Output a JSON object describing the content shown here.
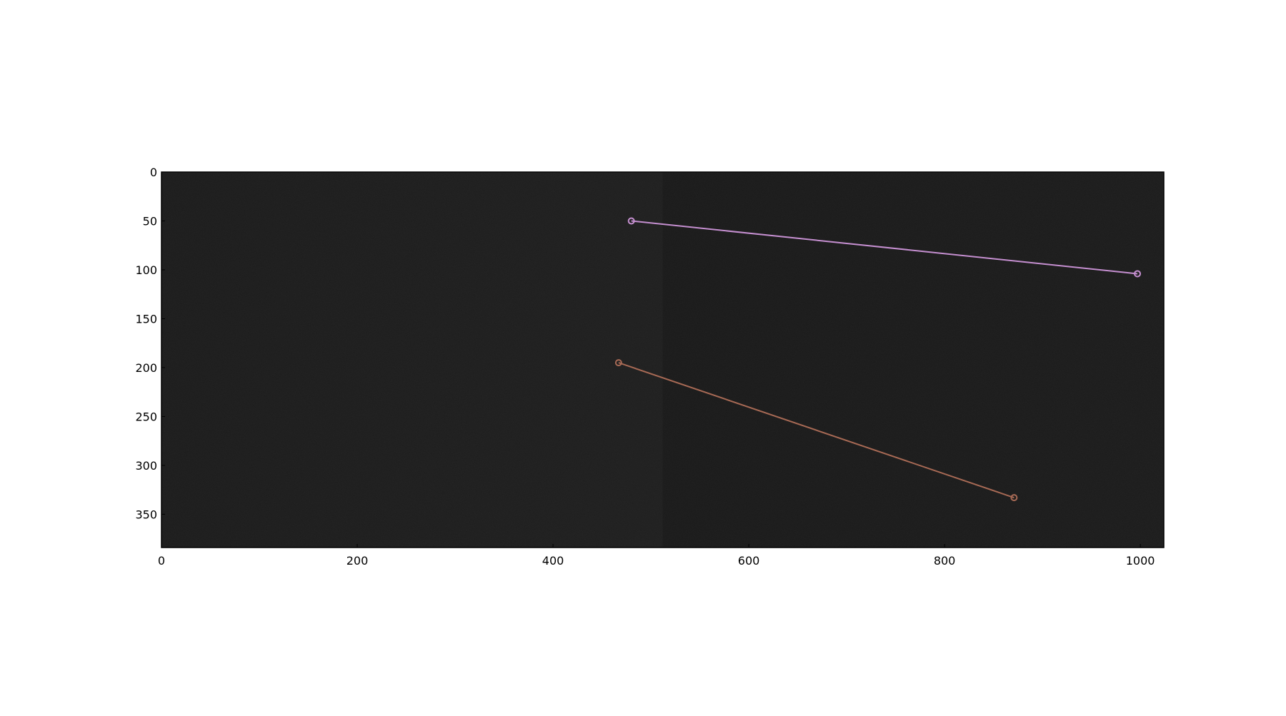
{
  "chart_data": {
    "type": "scatter",
    "background": "dark grayscale image",
    "xlim": [
      0,
      1024
    ],
    "ylim": [
      384,
      0
    ],
    "x_ticks": [
      0,
      200,
      400,
      600,
      800,
      1000
    ],
    "y_ticks": [
      0,
      50,
      100,
      150,
      200,
      250,
      300,
      350
    ],
    "x_tick_labels": [
      "0",
      "200",
      "400",
      "600",
      "800",
      "1000"
    ],
    "y_tick_labels": [
      "0",
      "50",
      "100",
      "150",
      "200",
      "250",
      "300",
      "350"
    ],
    "grid": false,
    "legend": "none",
    "series": [
      {
        "color": "#c58fd0",
        "points": [
          {
            "x": 480,
            "y": 50
          },
          {
            "x": 997,
            "y": 104
          }
        ]
      },
      {
        "color": "#a86a55",
        "points": [
          {
            "x": 467,
            "y": 195
          },
          {
            "x": 871,
            "y": 333
          }
        ]
      }
    ]
  }
}
